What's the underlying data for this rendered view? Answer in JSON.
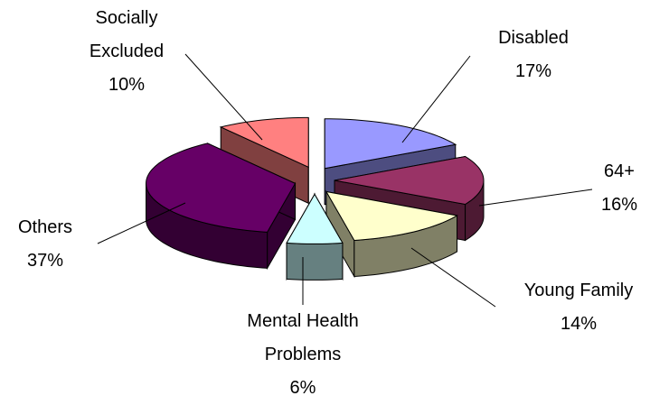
{
  "chart_data": {
    "type": "pie",
    "categories": [
      "Disabled",
      "64+",
      "Young Family",
      "Mental Health Problems",
      "Others",
      "Socially Excluded"
    ],
    "values": [
      17,
      16,
      14,
      6,
      37,
      10
    ],
    "value_labels": [
      "17%",
      "16%",
      "14%",
      "6%",
      "37%",
      "10%"
    ],
    "colors": [
      "#9999ff",
      "#993366",
      "#ffffcc",
      "#ccffff",
      "#660066",
      "#ff8080"
    ]
  }
}
